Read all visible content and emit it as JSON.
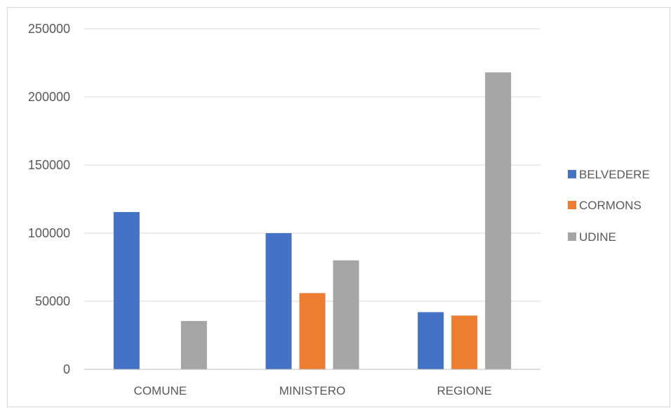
{
  "chart_data": {
    "type": "bar",
    "categories": [
      "COMUNE",
      "MINISTERO",
      "REGIONE"
    ],
    "series": [
      {
        "name": "BELVEDERE",
        "color": "#4472C4",
        "values": [
          115500,
          100000,
          42000
        ]
      },
      {
        "name": "CORMONS",
        "color": "#ED7D31",
        "values": [
          0,
          56000,
          39500
        ]
      },
      {
        "name": "UDINE",
        "color": "#A5A5A5",
        "values": [
          35500,
          80000,
          218000
        ]
      }
    ],
    "ylim": [
      0,
      250000
    ],
    "yticks": [
      0,
      50000,
      100000,
      150000,
      200000,
      250000
    ],
    "ytick_labels": [
      "0",
      "50000",
      "100000",
      "150000",
      "200000",
      "250000"
    ],
    "grid": true,
    "gridline_color": "#d9d9d9",
    "legend_position": "right",
    "title": "",
    "xlabel": "",
    "ylabel": ""
  }
}
